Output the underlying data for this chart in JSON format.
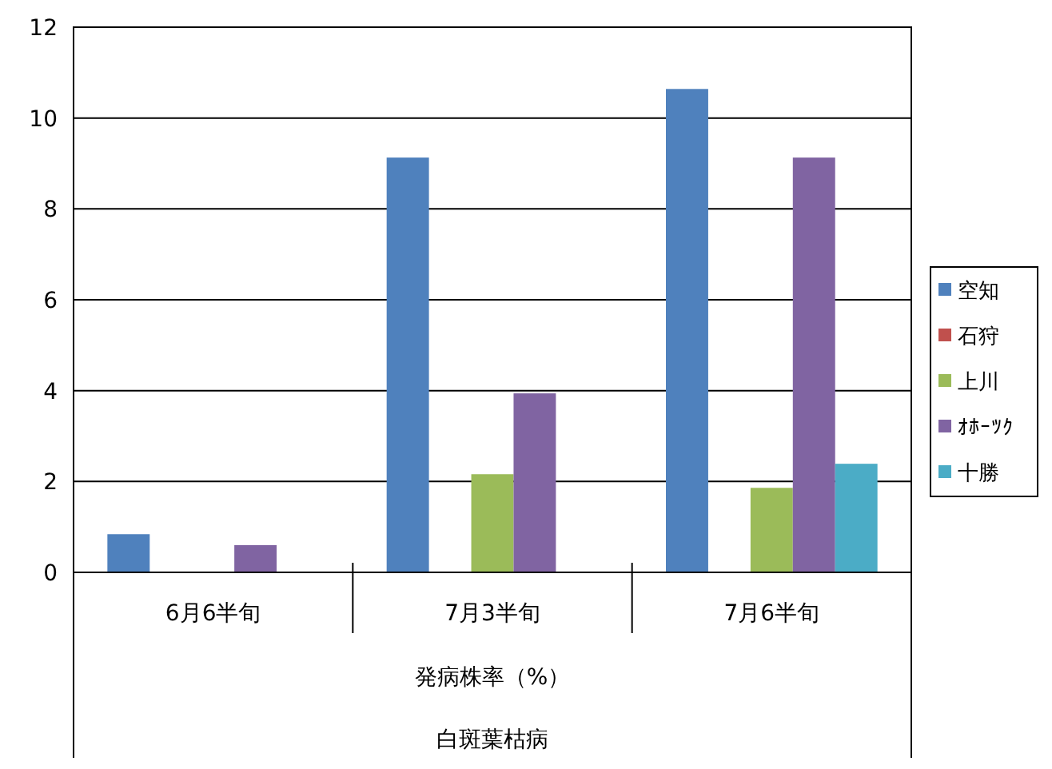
{
  "chart_data": {
    "type": "bar",
    "xlabel": "発病株率（%）",
    "annotations": [
      "白斑葉枯病"
    ],
    "categories": [
      "6月6半旬",
      "7月3半旬",
      "7月6半旬"
    ],
    "series": [
      {
        "name": "空知",
        "color": "#4f81bd",
        "values": [
          0.84,
          9.13,
          10.64
        ]
      },
      {
        "name": "石狩",
        "color": "#c0504d",
        "values": [
          0,
          0,
          0
        ]
      },
      {
        "name": "上川",
        "color": "#9bbb59",
        "values": [
          0,
          2.16,
          1.86
        ]
      },
      {
        "name": "ｵﾎｰﾂｸ",
        "color": "#8064a2",
        "values": [
          0.6,
          3.94,
          9.13
        ]
      },
      {
        "name": "十勝",
        "color": "#4bacc6",
        "values": [
          0,
          0,
          2.39
        ]
      }
    ],
    "ylim": [
      0,
      12
    ],
    "yticks": [
      0,
      2,
      4,
      6,
      8,
      10,
      12
    ],
    "grid": "y",
    "legend": "right"
  }
}
